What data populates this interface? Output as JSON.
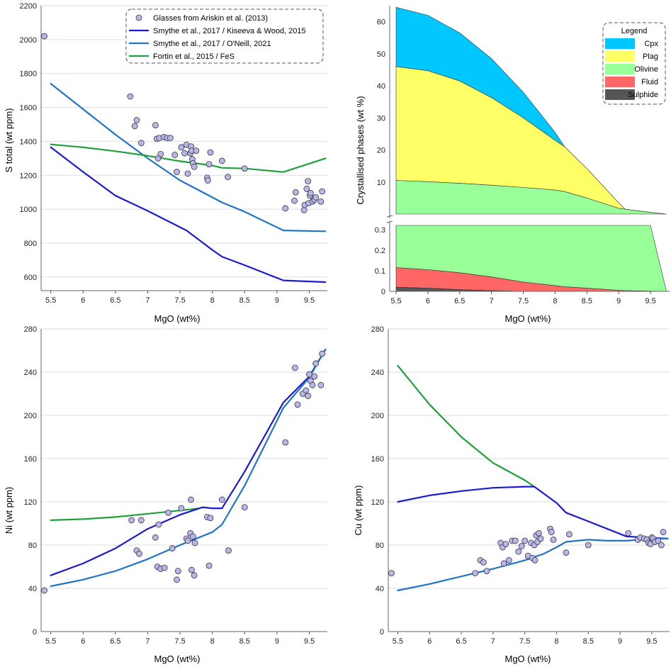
{
  "colors": {
    "glass_marker_fill": "#b9b7e6",
    "kiseeva": "#1b1bd6",
    "oneill": "#1f74c8",
    "fortin": "#1fa03a",
    "cpx": "#00c8ff",
    "plag": "#ffff66",
    "olivine": "#99ff99",
    "fluid": "#ff6666",
    "sulphide": "#555555"
  },
  "chart_data": [
    {
      "id": "s_total",
      "type": "line",
      "xlabel": "MgO (wt%)",
      "ylabel": "S total (wt ppm)",
      "xlim": [
        5.35,
        9.78
      ],
      "ylim": [
        520,
        2200
      ],
      "xticks": [
        "5.5",
        "6",
        "6.5",
        "7",
        "7.5",
        "8",
        "8.5",
        "9",
        "9.5"
      ],
      "yticks": [
        "600",
        "800",
        "1000",
        "1200",
        "1400",
        "1600",
        "1800",
        "2000",
        "2200"
      ],
      "grid": "horizontal",
      "legend_position": "top-right",
      "legend": [
        {
          "label": "Glasses from Ariskin et al. (2013)",
          "kind": "marker"
        },
        {
          "label": "Smythe et al., 2017 / Kiseeva & Wood, 2015",
          "kind": "kiseeva"
        },
        {
          "label": "Smythe et al., 2017 / O'Neill, 2021",
          "kind": "oneill"
        },
        {
          "label": "Fortin et al., 2015 / FeS",
          "kind": "fortin"
        }
      ],
      "series": [
        {
          "name": "Smythe et al., 2017 / Kiseeva & Wood, 2015",
          "kind": "kiseeva",
          "x": [
            5.5,
            6.0,
            6.5,
            7.0,
            7.6,
            8.0,
            8.15,
            8.5,
            9.1,
            9.75
          ],
          "y": [
            1365,
            1220,
            1080,
            990,
            875,
            760,
            720,
            670,
            580,
            570
          ]
        },
        {
          "name": "Smythe et al., 2017 / O'Neill, 2021",
          "kind": "oneill",
          "x": [
            5.5,
            6.0,
            6.5,
            7.0,
            7.5,
            8.0,
            8.15,
            8.5,
            9.1,
            9.75
          ],
          "y": [
            1740,
            1590,
            1440,
            1300,
            1170,
            1070,
            1040,
            985,
            875,
            870
          ]
        },
        {
          "name": "Fortin et al., 2015 / FeS",
          "kind": "fortin",
          "x": [
            5.5,
            6.0,
            6.5,
            7.0,
            7.5,
            8.0,
            8.15,
            8.5,
            9.1,
            9.75
          ],
          "y": [
            1382,
            1365,
            1342,
            1315,
            1283,
            1257,
            1244,
            1240,
            1219,
            1300
          ]
        },
        {
          "name": "Glasses from Ariskin et al. (2013)",
          "kind": "marker",
          "x": [
            5.4,
            6.73,
            6.8,
            6.83,
            6.9,
            7.12,
            7.14,
            7.16,
            7.18,
            7.2,
            7.25,
            7.3,
            7.35,
            7.42,
            7.45,
            7.52,
            7.57,
            7.6,
            7.62,
            7.66,
            7.67,
            7.68,
            7.69,
            7.7,
            7.72,
            7.75,
            7.92,
            7.93,
            7.95,
            7.97,
            8.15,
            8.24,
            8.5,
            9.13,
            9.27,
            9.29,
            9.42,
            9.43,
            9.46,
            9.48,
            9.49,
            9.51,
            9.52,
            9.55,
            9.58,
            9.6,
            9.68,
            9.7
          ],
          "y": [
            2020,
            1665,
            1490,
            1525,
            1390,
            1495,
            1415,
            1300,
            1420,
            1325,
            1425,
            1420,
            1420,
            1320,
            1220,
            1365,
            1330,
            1380,
            1210,
            1330,
            1370,
            1345,
            1295,
            1270,
            1250,
            1345,
            1185,
            1170,
            1265,
            1335,
            1285,
            1190,
            1240,
            1005,
            1050,
            1100,
            995,
            1025,
            1120,
            1165,
            1035,
            1080,
            1095,
            1045,
            1055,
            1070,
            1045,
            1105
          ]
        }
      ]
    },
    {
      "id": "phases",
      "type": "area",
      "xlabel": "MgO (wt%)",
      "ylabel": "Crystallised phases (wt %)",
      "xlim": [
        5.4,
        9.8
      ],
      "xticks": [
        "5.5",
        "6",
        "6.5",
        "7",
        "7.5",
        "8",
        "8.5",
        "9",
        "9.5"
      ],
      "upper_ylim": [
        0,
        65
      ],
      "upper_yticks": [
        "10",
        "20",
        "30",
        "40",
        "50",
        "60"
      ],
      "lower_ylim": [
        0,
        0.32
      ],
      "lower_yticks": [
        "0",
        "0.1",
        "0.2",
        "0.3"
      ],
      "legend_title": "Legend",
      "legend_position": "top-right",
      "legend": [
        {
          "label": "Cpx",
          "kind": "cpx"
        },
        {
          "label": "Plag",
          "kind": "plag"
        },
        {
          "label": "Olivine",
          "kind": "olivine"
        },
        {
          "label": "Fluid",
          "kind": "fluid"
        },
        {
          "label": "Sulphide",
          "kind": "sulphide"
        }
      ],
      "x": [
        5.5,
        6.0,
        6.5,
        7.0,
        7.5,
        8.0,
        8.15,
        8.5,
        9.0,
        9.1,
        9.5,
        9.75
      ],
      "cumulative": {
        "olivine": [
          10.5,
          10.1,
          9.6,
          9.0,
          8.3,
          7.5,
          7.0,
          5.0,
          1.8,
          1.5,
          0.5,
          0.0
        ],
        "plag": [
          46.0,
          44.7,
          41.5,
          36.3,
          30.0,
          23.0,
          21.0,
          14.2,
          3.5,
          1.5,
          0.5,
          0.0
        ],
        "cpx": [
          64.5,
          62.0,
          56.5,
          48.5,
          38.0,
          25.5,
          21.0,
          14.2,
          3.5,
          1.5,
          0.5,
          0.0
        ]
      },
      "lower": {
        "olivine": [
          0.32,
          0.32,
          0.32,
          0.32,
          0.32,
          0.32,
          0.32,
          0.32,
          0.32,
          0.32,
          0.32,
          0.0
        ],
        "fluid": [
          0.115,
          0.105,
          0.09,
          0.07,
          0.045,
          0.028,
          0.022,
          0.015,
          0.005,
          0.003,
          0.001,
          0.0
        ],
        "sulphide": [
          0.02,
          0.015,
          0.008,
          0.003,
          0.0,
          0.0,
          0.0,
          0.0,
          0.0,
          0.0,
          0.0,
          0.0
        ]
      }
    },
    {
      "id": "ni",
      "type": "line",
      "xlabel": "MgO (wt%)",
      "ylabel": "Ni (wt ppm)",
      "xlim": [
        5.35,
        9.78
      ],
      "ylim": [
        0,
        280
      ],
      "xticks": [
        "5.5",
        "6",
        "6.5",
        "7",
        "7.5",
        "8",
        "8.5",
        "9",
        "9.5"
      ],
      "yticks": [
        "0",
        "40",
        "80",
        "120",
        "160",
        "200",
        "240",
        "280"
      ],
      "grid": "horizontal",
      "series": [
        {
          "name": "Fortin et al., 2015 / FeS",
          "kind": "fortin",
          "x": [
            5.5,
            6.0,
            6.5,
            7.0,
            7.5,
            7.8
          ],
          "y": [
            103,
            104,
            106,
            109,
            112,
            114
          ]
        },
        {
          "name": "Smythe et al., 2017 / Kiseeva & Wood, 2015",
          "kind": "kiseeva",
          "x": [
            5.5,
            6.0,
            6.5,
            7.0,
            7.5,
            7.85,
            8.0,
            8.15,
            8.5,
            9.1,
            9.5,
            9.75
          ],
          "y": [
            52,
            63,
            77,
            95,
            108,
            115,
            114,
            114,
            148,
            212,
            236,
            261
          ]
        },
        {
          "name": "Smythe et al., 2017 / O'Neill, 2021",
          "kind": "oneill",
          "x": [
            5.5,
            6.0,
            6.5,
            7.0,
            7.5,
            8.0,
            8.15,
            8.5,
            9.1,
            9.5,
            9.75
          ],
          "y": [
            42,
            48,
            56,
            67,
            80,
            92,
            99,
            135,
            207,
            235,
            261
          ]
        },
        {
          "name": "Glasses from Ariskin et al. (2013)",
          "kind": "marker",
          "x": [
            5.4,
            6.75,
            6.83,
            6.87,
            6.9,
            7.12,
            7.15,
            7.17,
            7.2,
            7.26,
            7.32,
            7.38,
            7.45,
            7.47,
            7.52,
            7.6,
            7.62,
            7.66,
            7.67,
            7.68,
            7.7,
            7.72,
            7.73,
            7.92,
            7.95,
            7.97,
            8.15,
            8.25,
            8.5,
            9.13,
            9.28,
            9.32,
            9.4,
            9.45,
            9.48,
            9.5,
            9.52,
            9.55,
            9.58,
            9.6,
            9.68,
            9.7
          ],
          "y": [
            38,
            103,
            75,
            72,
            103,
            87,
            60,
            99,
            58,
            59,
            110,
            77,
            48,
            56,
            114,
            86,
            84,
            91,
            122,
            57,
            88,
            52,
            82,
            106,
            61,
            105,
            122,
            75,
            115,
            175,
            244,
            210,
            220,
            223,
            218,
            238,
            232,
            228,
            236,
            248,
            228,
            257
          ]
        }
      ]
    },
    {
      "id": "cu",
      "type": "line",
      "xlabel": "MgO (wt%)",
      "ylabel": "Cu (wt ppm)",
      "xlim": [
        5.35,
        9.78
      ],
      "ylim": [
        0,
        280
      ],
      "xticks": [
        "5.5",
        "6",
        "6.5",
        "7",
        "7.5",
        "8",
        "8.5",
        "9",
        "9.5"
      ],
      "yticks": [
        "0",
        "40",
        "80",
        "120",
        "160",
        "200",
        "240",
        "280"
      ],
      "grid": "horizontal",
      "series": [
        {
          "name": "Fortin et al., 2015 / FeS",
          "kind": "fortin",
          "x": [
            5.5,
            6.0,
            6.5,
            7.0,
            7.5,
            7.65
          ],
          "y": [
            246,
            210,
            180,
            156,
            140,
            134
          ]
        },
        {
          "name": "Smythe et al., 2017 / Kiseeva & Wood, 2015",
          "kind": "kiseeva",
          "x": [
            5.5,
            6.0,
            6.5,
            7.0,
            7.5,
            7.65,
            8.0,
            8.15,
            8.5,
            9.1,
            9.75
          ],
          "y": [
            120,
            126,
            130,
            133,
            134,
            134,
            119,
            110,
            102,
            88,
            86
          ]
        },
        {
          "name": "Smythe et al., 2017 / O'Neill, 2021",
          "kind": "oneill",
          "x": [
            5.5,
            6.0,
            6.5,
            7.0,
            7.5,
            7.8,
            8.0,
            8.15,
            8.5,
            8.8,
            9.1,
            9.5,
            9.75
          ],
          "y": [
            38,
            44,
            51,
            58,
            66,
            72,
            78,
            83,
            85,
            84,
            84,
            86,
            86
          ]
        },
        {
          "name": "Glasses from Ariskin et al. (2013)",
          "kind": "marker",
          "x": [
            5.4,
            6.72,
            6.8,
            6.85,
            6.9,
            7.12,
            7.15,
            7.17,
            7.2,
            7.25,
            7.3,
            7.35,
            7.4,
            7.45,
            7.5,
            7.55,
            7.6,
            7.62,
            7.65,
            7.66,
            7.68,
            7.7,
            7.72,
            7.75,
            7.9,
            7.92,
            7.95,
            8.15,
            8.2,
            8.5,
            9.13,
            9.28,
            9.32,
            9.38,
            9.42,
            9.45,
            9.48,
            9.5,
            9.52,
            9.55,
            9.6,
            9.65,
            9.68
          ],
          "y": [
            54,
            54,
            66,
            64,
            56,
            82,
            78,
            63,
            81,
            66,
            84,
            84,
            74,
            79,
            84,
            70,
            82,
            68,
            80,
            66,
            89,
            83,
            91,
            86,
            95,
            92,
            85,
            73,
            90,
            80,
            91,
            85,
            87,
            86,
            85,
            82,
            81,
            87,
            86,
            83,
            84,
            80,
            92
          ]
        }
      ]
    }
  ]
}
